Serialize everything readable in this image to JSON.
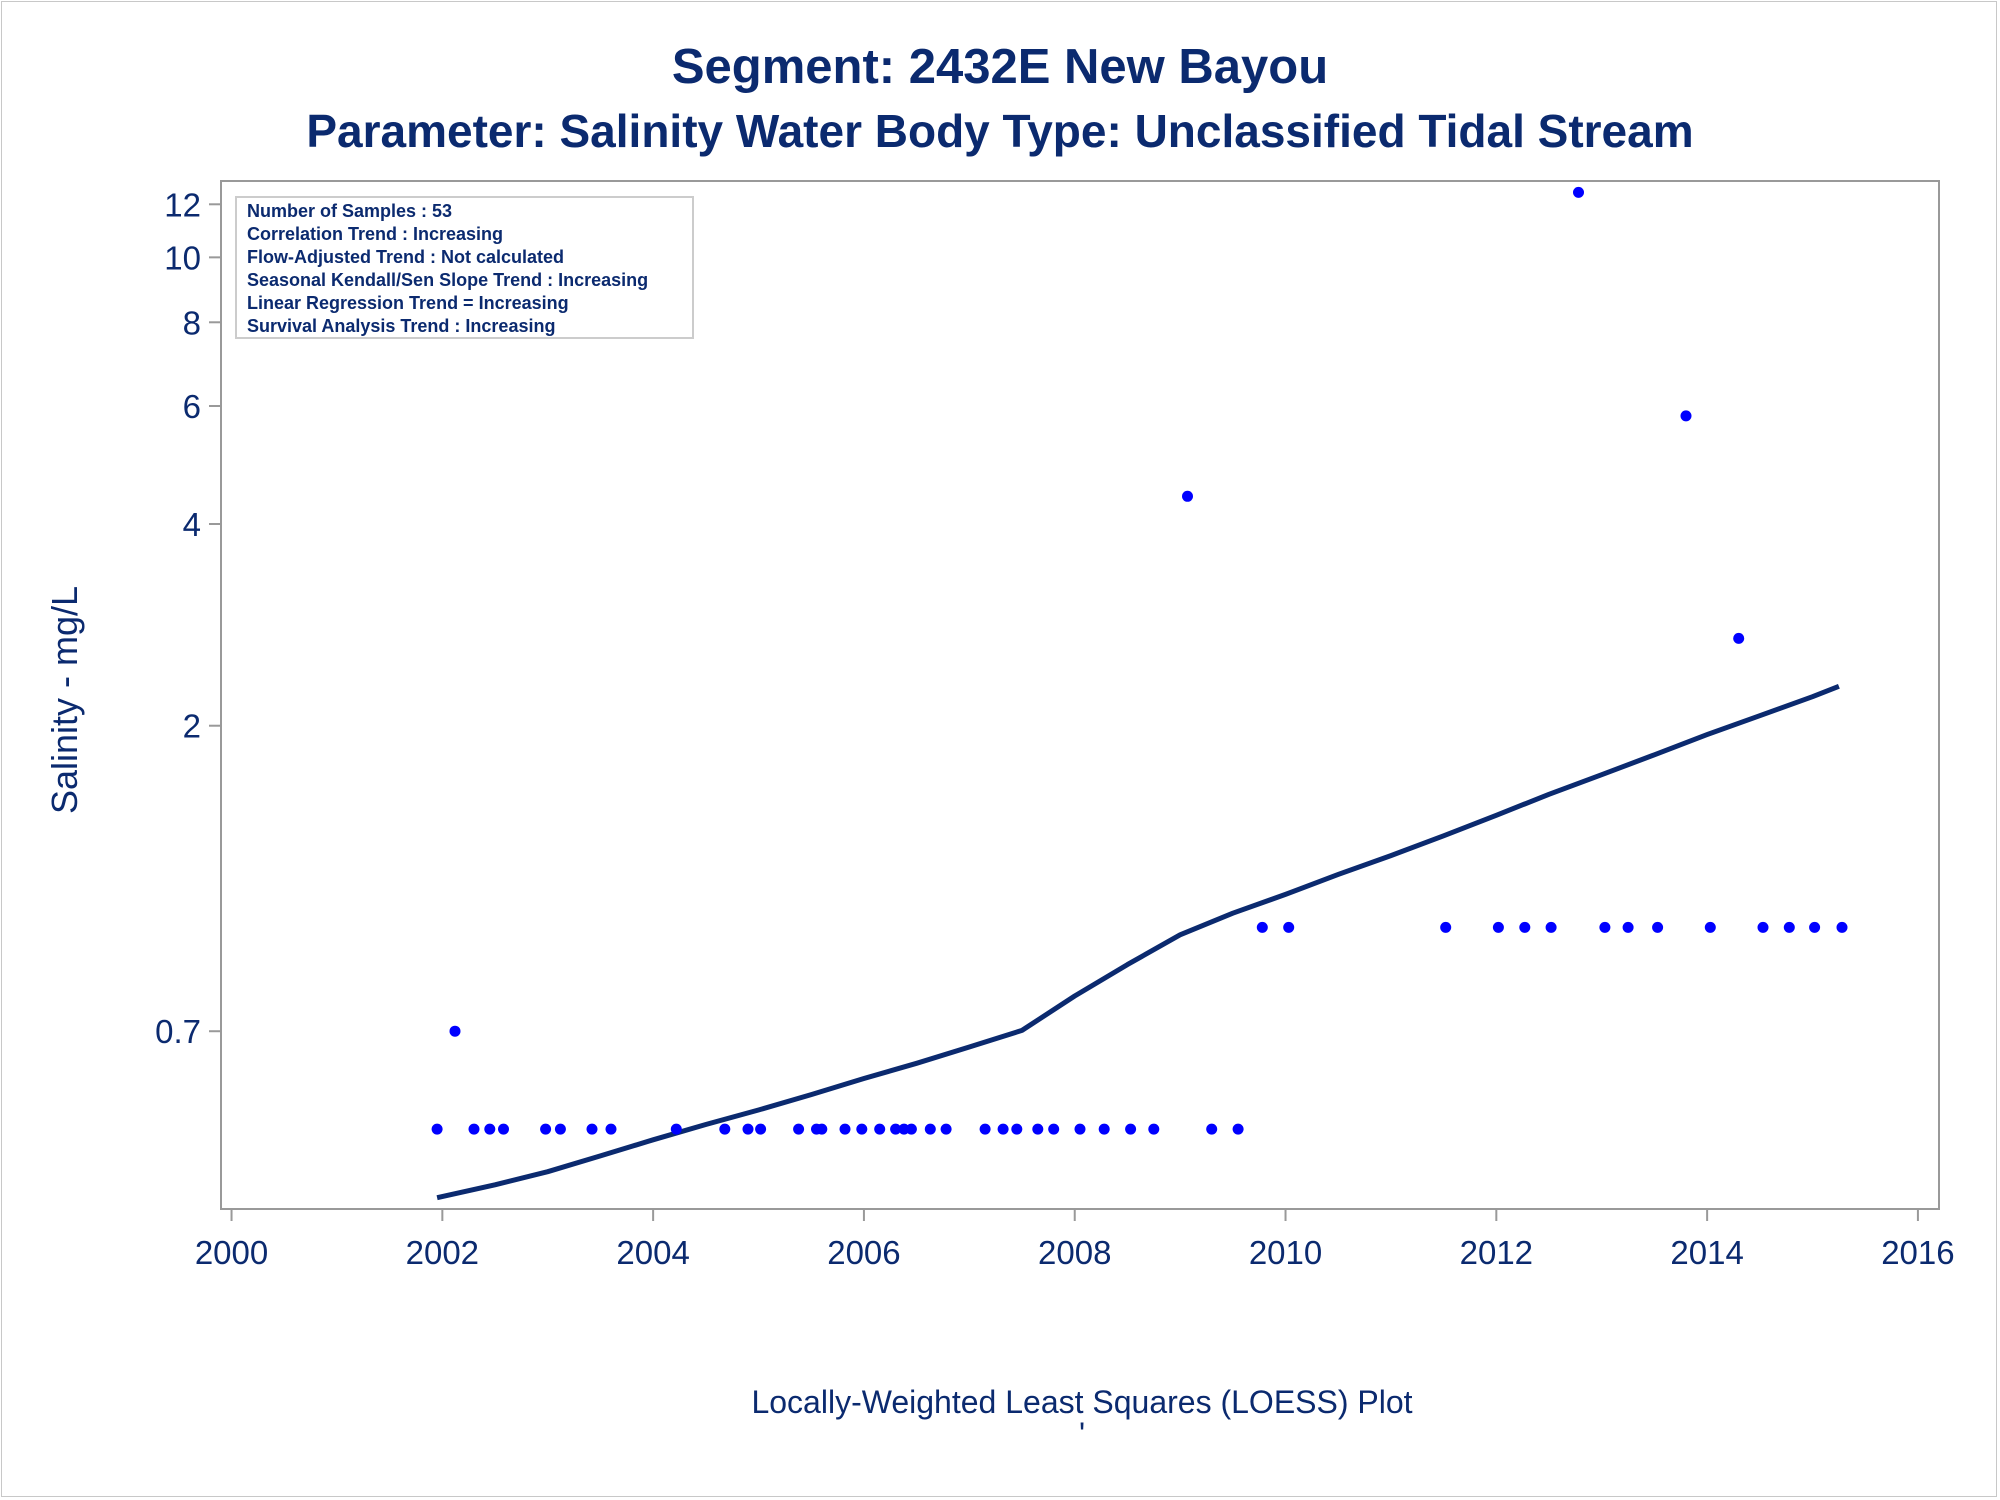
{
  "colors": {
    "text": "#0b2a6f",
    "points": "#0000ff",
    "loess_line": "#0b2a6f",
    "axis": "#999999"
  },
  "chart_data": {
    "type": "scatter",
    "title": "Segment: 2432E  New Bayou",
    "subtitle": "Parameter: Salinity   Water Body Type: Unclassified Tidal Stream",
    "xlabel": "Locally-Weighted Least Squares (LOESS) Plot",
    "ylabel": "Salinity - mg/L",
    "footnote": "'",
    "y_scale": "log",
    "xlim": [
      1999.9,
      2016.2
    ],
    "ylim": [
      0.38,
      13
    ],
    "x_ticks": [
      2000,
      2002,
      2004,
      2006,
      2008,
      2010,
      2012,
      2014,
      2016
    ],
    "y_ticks": [
      0.7,
      2,
      4,
      6,
      8,
      10,
      12
    ],
    "grid": false,
    "info_box": [
      "Number of Samples : 53",
      "Correlation Trend : Increasing",
      "Flow-Adjusted Trend : Not calculated",
      "Seasonal Kendall/Sen Slope Trend : Increasing",
      "Linear Regression Trend = Increasing",
      "Survival Analysis Trend : Increasing"
    ],
    "series": [
      {
        "kind": "points",
        "points": [
          [
            2001.95,
            0.5
          ],
          [
            2002.12,
            0.7
          ],
          [
            2002.3,
            0.5
          ],
          [
            2002.45,
            0.5
          ],
          [
            2002.58,
            0.5
          ],
          [
            2002.98,
            0.5
          ],
          [
            2003.12,
            0.5
          ],
          [
            2003.42,
            0.5
          ],
          [
            2003.6,
            0.5
          ],
          [
            2004.22,
            0.5
          ],
          [
            2004.68,
            0.5
          ],
          [
            2004.9,
            0.5
          ],
          [
            2005.02,
            0.5
          ],
          [
            2005.38,
            0.5
          ],
          [
            2005.55,
            0.5
          ],
          [
            2005.6,
            0.5
          ],
          [
            2005.82,
            0.5
          ],
          [
            2005.98,
            0.5
          ],
          [
            2006.15,
            0.5
          ],
          [
            2006.3,
            0.5
          ],
          [
            2006.38,
            0.5
          ],
          [
            2006.45,
            0.5
          ],
          [
            2006.63,
            0.5
          ],
          [
            2006.78,
            0.5
          ],
          [
            2007.15,
            0.5
          ],
          [
            2007.32,
            0.5
          ],
          [
            2007.45,
            0.5
          ],
          [
            2007.65,
            0.5
          ],
          [
            2007.8,
            0.5
          ],
          [
            2008.05,
            0.5
          ],
          [
            2008.28,
            0.5
          ],
          [
            2008.53,
            0.5
          ],
          [
            2008.75,
            0.5
          ],
          [
            2009.3,
            0.5
          ],
          [
            2009.55,
            0.5
          ],
          [
            2009.07,
            4.4
          ],
          [
            2009.78,
            1.0
          ],
          [
            2010.03,
            1.0
          ],
          [
            2011.52,
            1.0
          ],
          [
            2012.02,
            1.0
          ],
          [
            2012.27,
            1.0
          ],
          [
            2012.52,
            1.0
          ],
          [
            2013.03,
            1.0
          ],
          [
            2013.25,
            1.0
          ],
          [
            2013.53,
            1.0
          ],
          [
            2014.03,
            1.0
          ],
          [
            2014.53,
            1.0
          ],
          [
            2014.78,
            1.0
          ],
          [
            2015.02,
            1.0
          ],
          [
            2015.28,
            1.0
          ],
          [
            2012.78,
            12.5
          ],
          [
            2013.8,
            5.8
          ],
          [
            2014.3,
            2.7
          ]
        ]
      },
      {
        "kind": "loess",
        "points": [
          [
            2001.95,
            0.395
          ],
          [
            2002.5,
            0.413
          ],
          [
            2003.0,
            0.432
          ],
          [
            2003.5,
            0.456
          ],
          [
            2004.0,
            0.482
          ],
          [
            2004.5,
            0.508
          ],
          [
            2005.0,
            0.534
          ],
          [
            2005.5,
            0.563
          ],
          [
            2006.0,
            0.595
          ],
          [
            2006.5,
            0.627
          ],
          [
            2007.0,
            0.663
          ],
          [
            2007.5,
            0.702
          ],
          [
            2008.0,
            0.79
          ],
          [
            2008.5,
            0.88
          ],
          [
            2009.0,
            0.975
          ],
          [
            2009.5,
            1.05
          ],
          [
            2010.0,
            1.12
          ],
          [
            2010.5,
            1.2
          ],
          [
            2011.0,
            1.28
          ],
          [
            2011.5,
            1.37
          ],
          [
            2012.0,
            1.47
          ],
          [
            2012.5,
            1.58
          ],
          [
            2013.0,
            1.69
          ],
          [
            2013.5,
            1.81
          ],
          [
            2014.0,
            1.94
          ],
          [
            2014.5,
            2.07
          ],
          [
            2015.0,
            2.21
          ],
          [
            2015.25,
            2.29
          ]
        ]
      }
    ]
  }
}
